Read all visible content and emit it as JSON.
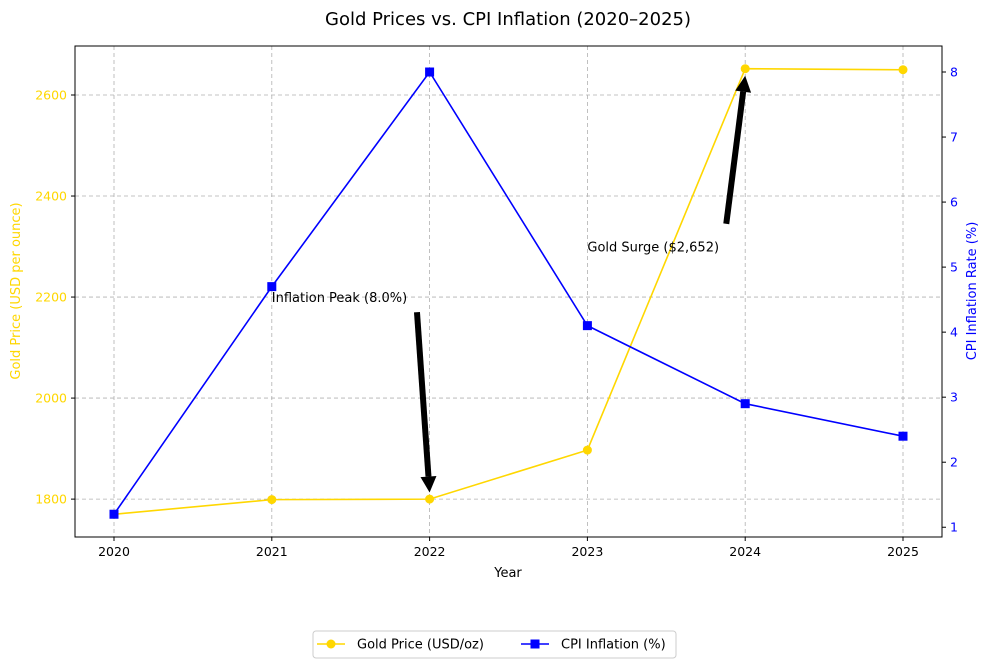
{
  "chart_data": {
    "type": "line",
    "title": "Gold Prices vs. CPI Inflation (2020–2025)",
    "xlabel": "Year",
    "ylabel_left": "Gold Price (USD per ounce)",
    "ylabel_right": "CPI Inflation Rate (%)",
    "x": [
      "2020",
      "2021",
      "2022",
      "2023",
      "2024",
      "2025"
    ],
    "x_ticks": [
      "2020",
      "2021",
      "2022",
      "2023",
      "2024",
      "2025"
    ],
    "y_left_ticks": [
      "1800",
      "2000",
      "2200",
      "2400",
      "2600"
    ],
    "y_right_ticks": [
      "1",
      "2",
      "3",
      "4",
      "5",
      "6",
      "7",
      "8"
    ],
    "ylim_left": [
      1725,
      2697
    ],
    "ylim_right": [
      0.85,
      8.4
    ],
    "grid": true,
    "legend_position": "bottom-center",
    "series": [
      {
        "name": "Gold Price (USD/oz)",
        "axis": "left",
        "color": "#FFD700",
        "marker": "circle",
        "values": [
          1770,
          1799,
          1800,
          1897,
          2652,
          2650
        ]
      },
      {
        "name": "CPI Inflation (%)",
        "axis": "right",
        "color": "#0000FF",
        "marker": "square",
        "values": [
          1.2,
          4.7,
          8.0,
          4.1,
          2.9,
          2.4
        ]
      }
    ],
    "annotations": [
      {
        "text": "Inflation Peak (8.0%)",
        "text_x": "2021",
        "text_y": 2200,
        "arrow_from_x": "2021.92",
        "arrow_from_y": 2170,
        "arrow_to_x": "2022",
        "arrow_to_y": 1813
      },
      {
        "text": "Gold Surge ($2,652)",
        "text_x": "2023",
        "text_y": 2300,
        "arrow_from_x": "2023.88",
        "arrow_from_y": 2345,
        "arrow_to_x": "2024",
        "arrow_to_y": 2638
      }
    ]
  }
}
